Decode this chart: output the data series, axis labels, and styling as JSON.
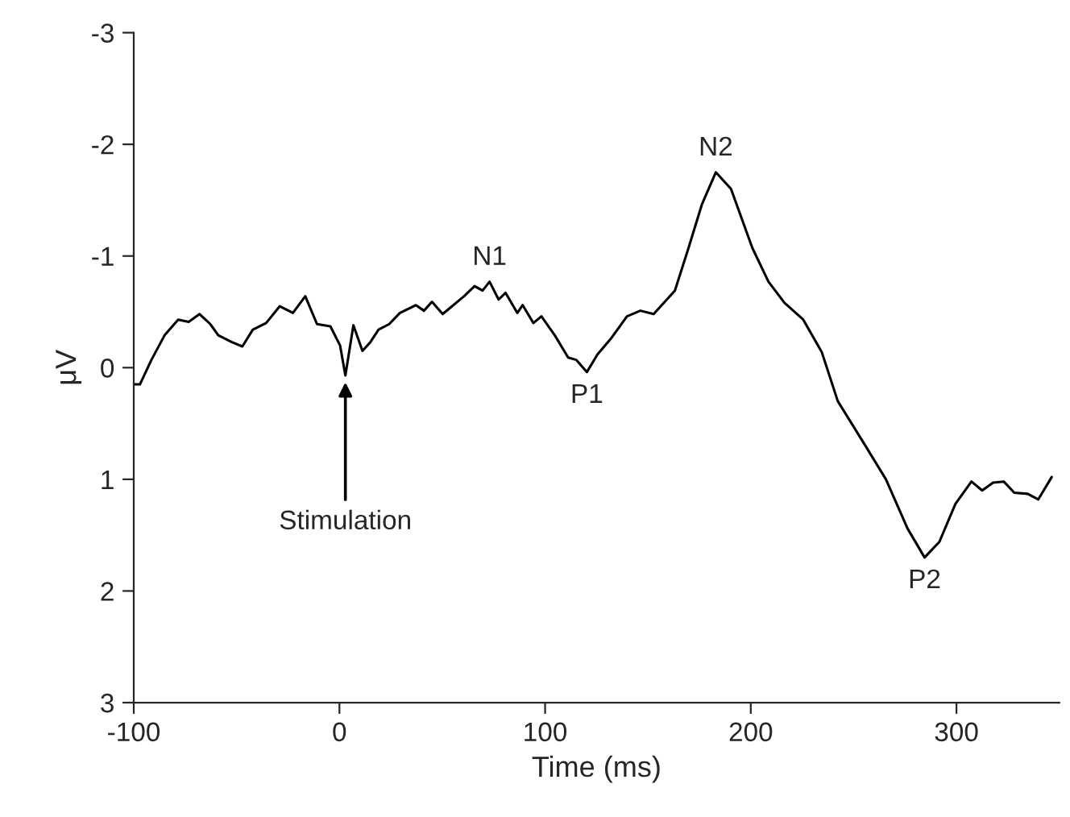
{
  "chart_data": {
    "type": "line",
    "xlabel": "Time (ms)",
    "ylabel": "μV",
    "xlim": [
      -100,
      350
    ],
    "xticks": [
      -100,
      0,
      100,
      200,
      300
    ],
    "ylim": [
      3,
      -3
    ],
    "yticks": [
      -3,
      -2,
      -1,
      0,
      1,
      2,
      3
    ],
    "grid": false,
    "legend": false,
    "marker": "none",
    "line_style": "solid",
    "series": [
      {
        "color": "#000000",
        "x": [
          -100,
          -97,
          -91.4,
          -85,
          -78.4,
          -73.3,
          -68,
          -62.8,
          -58.9,
          -52.5,
          -47.2,
          -42.1,
          -35.6,
          -29,
          -22.6,
          -16.6,
          -10.9,
          -4.4,
          0.3,
          2.9,
          6.8,
          11.2,
          15.1,
          19,
          24.2,
          29.4,
          37.2,
          41.1,
          45,
          50.2,
          60.6,
          65.7,
          69.6,
          73,
          77.4,
          80.8,
          86.5,
          89.1,
          94.3,
          98.2,
          104.7,
          111.2,
          115.1,
          120.3,
          125.5,
          132,
          139.8,
          146.3,
          152.8,
          163.1,
          169.7,
          176.2,
          183,
          190.4,
          200.8,
          208.6,
          216.4,
          225.5,
          234.5,
          242.3,
          255.4,
          265.7,
          276.2,
          284.5,
          291.7,
          299.5,
          307.3,
          312.5,
          317.8,
          323,
          328.1,
          334.6,
          339.8,
          346.3
        ],
        "values": [
          0.15,
          0.15,
          -0.07,
          -0.29,
          -0.43,
          -0.41,
          -0.48,
          -0.39,
          -0.29,
          -0.23,
          -0.19,
          -0.34,
          -0.4,
          -0.55,
          -0.49,
          -0.64,
          -0.39,
          -0.37,
          -0.2,
          0.07,
          -0.38,
          -0.15,
          -0.23,
          -0.34,
          -0.39,
          -0.49,
          -0.56,
          -0.51,
          -0.59,
          -0.48,
          -0.64,
          -0.73,
          -0.69,
          -0.77,
          -0.61,
          -0.67,
          -0.49,
          -0.56,
          -0.4,
          -0.46,
          -0.29,
          -0.09,
          -0.07,
          0.04,
          -0.12,
          -0.26,
          -0.46,
          -0.51,
          -0.48,
          -0.69,
          -1.07,
          -1.46,
          -1.75,
          -1.6,
          -1.07,
          -0.77,
          -0.58,
          -0.43,
          -0.14,
          0.3,
          0.69,
          1.0,
          1.44,
          1.7,
          1.56,
          1.22,
          1.02,
          1.1,
          1.03,
          1.02,
          1.12,
          1.13,
          1.18,
          0.98
        ]
      }
    ],
    "annotations": [
      {
        "text": "Stimulation",
        "x": 2.9,
        "y": 0.07
      },
      {
        "text": "N1",
        "x": 73,
        "y": -0.77
      },
      {
        "text": "P1",
        "x": 120.3,
        "y": 0.04
      },
      {
        "text": "N2",
        "x": 183,
        "y": -1.75
      },
      {
        "text": "P2",
        "x": 284.5,
        "y": 1.7
      }
    ]
  }
}
